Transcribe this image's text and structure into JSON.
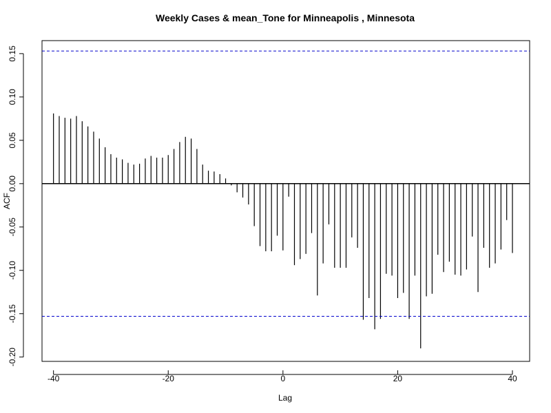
{
  "chart_data": {
    "type": "bar",
    "title": "Weekly Cases & mean_Tone for Minneapolis , Minnesota",
    "xlabel": "Lag",
    "ylabel": "ACF",
    "xlim": [
      -42,
      43
    ],
    "ylim": [
      -0.205,
      0.165
    ],
    "xticks": [
      -40,
      -20,
      0,
      20,
      40
    ],
    "yticks": [
      -0.2,
      -0.15,
      -0.1,
      -0.05,
      0.0,
      0.05,
      0.1,
      0.15
    ],
    "xtick_labels": [
      "-40",
      "-20",
      "0",
      "20",
      "40"
    ],
    "ytick_labels": [
      "-0.20",
      "-0.15",
      "-0.10",
      "-0.05",
      "0.00",
      "0.05",
      "0.10",
      "0.15"
    ],
    "confidence_bound": 0.153,
    "grid": false,
    "colors": {
      "bars": "#000000",
      "confidence_lines": "#0000cc",
      "zero_line": "#000000"
    },
    "x": [
      -40,
      -39,
      -38,
      -37,
      -36,
      -35,
      -34,
      -33,
      -32,
      -31,
      -30,
      -29,
      -28,
      -27,
      -26,
      -25,
      -24,
      -23,
      -22,
      -21,
      -20,
      -19,
      -18,
      -17,
      -16,
      -15,
      -14,
      -13,
      -12,
      -11,
      -10,
      -9,
      -8,
      -7,
      -6,
      -5,
      -4,
      -3,
      -2,
      -1,
      0,
      1,
      2,
      3,
      4,
      5,
      6,
      7,
      8,
      9,
      10,
      11,
      12,
      13,
      14,
      15,
      16,
      17,
      18,
      19,
      20,
      21,
      22,
      23,
      24,
      25,
      26,
      27,
      28,
      29,
      30,
      31,
      32,
      33,
      34,
      35,
      36,
      37,
      38,
      39,
      40
    ],
    "values": [
      0.081,
      0.078,
      0.076,
      0.075,
      0.078,
      0.072,
      0.066,
      0.06,
      0.052,
      0.042,
      0.034,
      0.03,
      0.028,
      0.024,
      0.022,
      0.023,
      0.029,
      0.032,
      0.03,
      0.03,
      0.033,
      0.04,
      0.048,
      0.054,
      0.052,
      0.04,
      0.022,
      0.015,
      0.014,
      0.011,
      0.006,
      -0.002,
      -0.01,
      -0.016,
      -0.024,
      -0.049,
      -0.072,
      -0.078,
      -0.078,
      -0.06,
      -0.077,
      -0.015,
      -0.094,
      -0.087,
      -0.081,
      -0.057,
      -0.129,
      -0.092,
      -0.047,
      -0.097,
      -0.097,
      -0.097,
      -0.062,
      -0.074,
      -0.157,
      -0.132,
      -0.168,
      -0.156,
      -0.104,
      -0.106,
      -0.132,
      -0.126,
      -0.156,
      -0.106,
      -0.19,
      -0.13,
      -0.127,
      -0.082,
      -0.102,
      -0.09,
      -0.105,
      -0.106,
      -0.099,
      -0.061,
      -0.125,
      -0.074,
      -0.097,
      -0.092,
      -0.076,
      -0.042,
      -0.08
    ]
  }
}
